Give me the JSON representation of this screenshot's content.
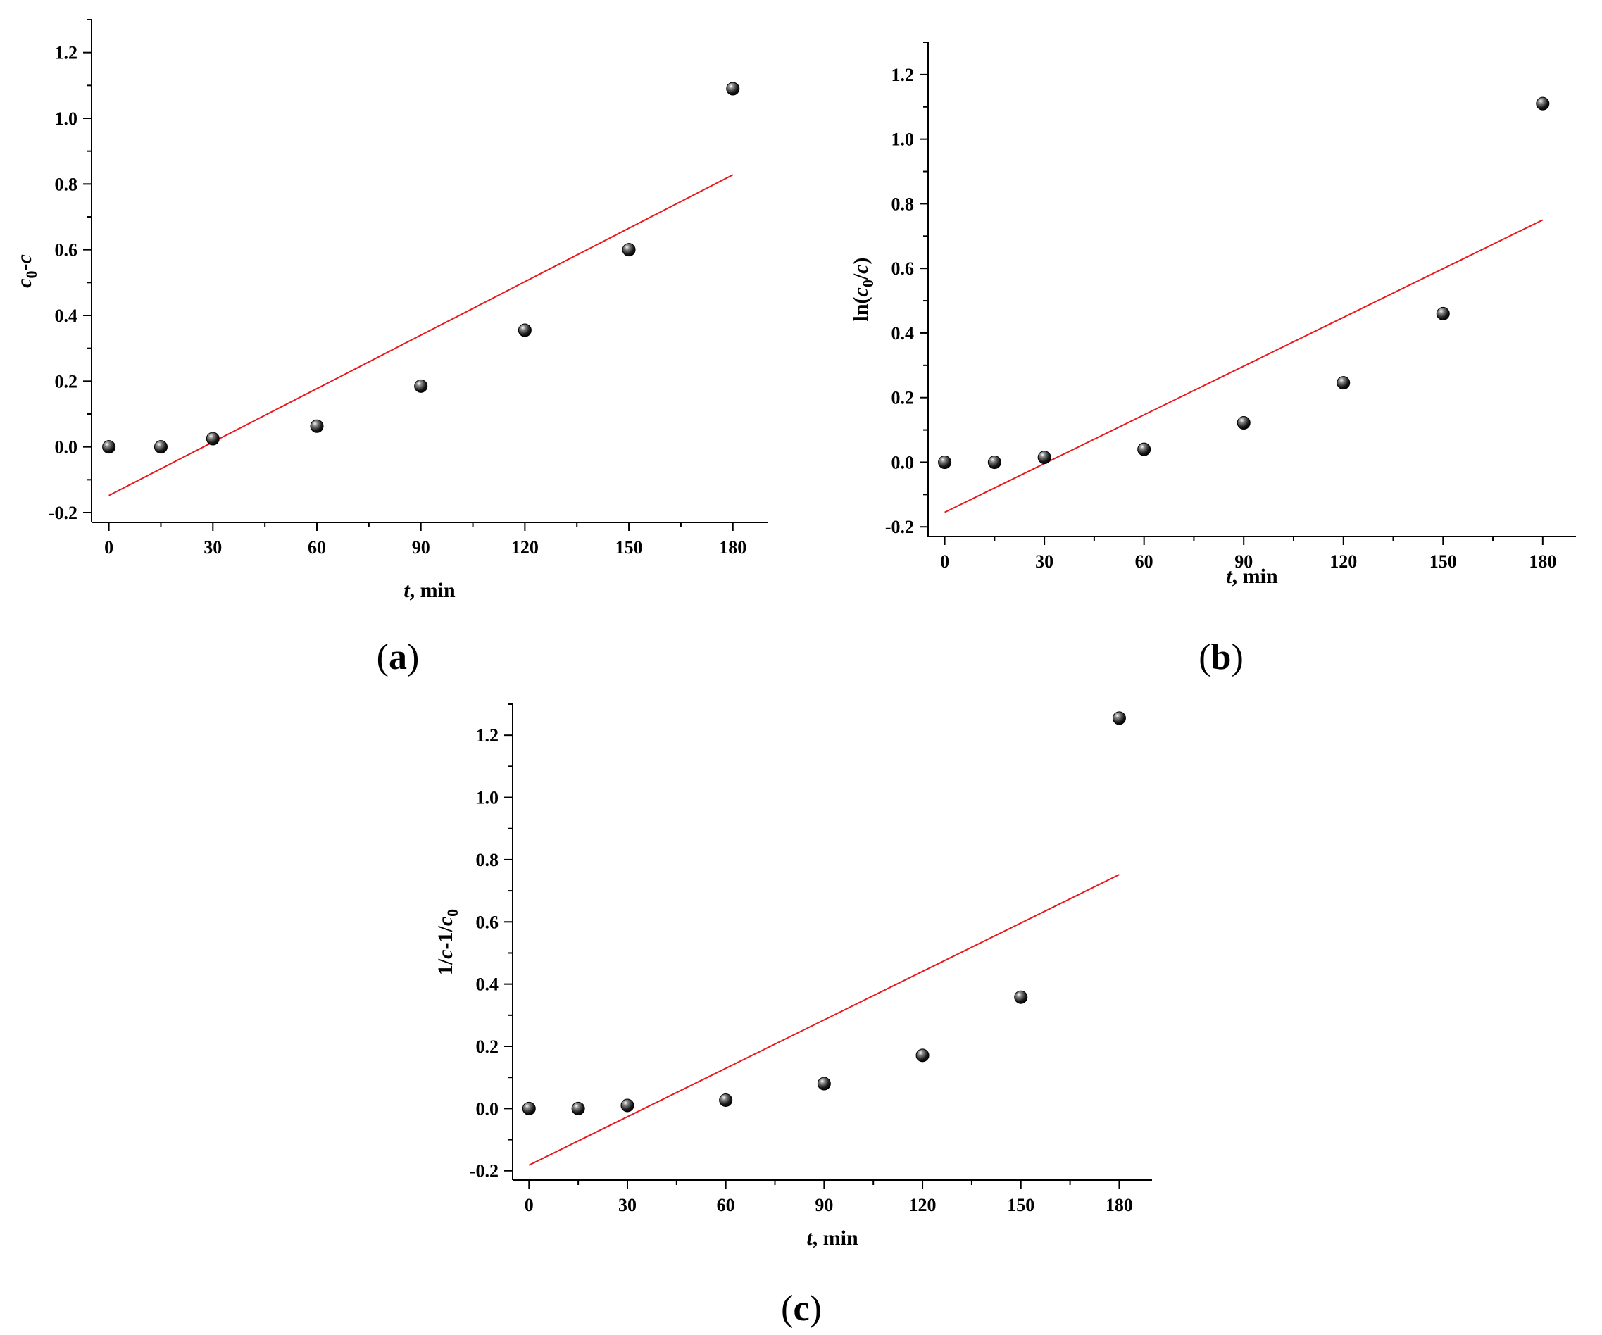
{
  "figure": {
    "colors": {
      "points": "#000000",
      "fit_line": "#e8191c",
      "axes": "#000000",
      "background": "#ffffff"
    },
    "icons": {
      "marker": "shaded-sphere"
    }
  },
  "chart_data": [
    {
      "type": "scatter",
      "panel_label": [
        "(",
        "a",
        ")"
      ],
      "xlabel": {
        "var": "t",
        "unit": ", min"
      },
      "ylabel": {
        "parts": [
          {
            "t": "c",
            "i": true
          },
          {
            "t": "0",
            "sub": true,
            "i": false
          },
          {
            "t": "-",
            "i": false
          },
          {
            "t": "c",
            "i": true
          }
        ]
      },
      "x_ticks": [
        0,
        30,
        60,
        90,
        120,
        150,
        180
      ],
      "x_tick_labels": [
        "0",
        "30",
        "60",
        "90",
        "120",
        "150",
        "180"
      ],
      "y_ticks": [
        -0.2,
        0.0,
        0.2,
        0.4,
        0.6,
        0.8,
        1.0,
        1.2
      ],
      "y_tick_labels": [
        "-0.2",
        "0.0",
        "0.2",
        "0.4",
        "0.6",
        "0.8",
        "1.0",
        "1.2"
      ],
      "xlim": [
        -5,
        190
      ],
      "ylim": [
        -0.23,
        1.3
      ],
      "grid": false,
      "legend": "none",
      "points": {
        "x": [
          0,
          15,
          30,
          60,
          90,
          120,
          150,
          180
        ],
        "y": [
          0.0,
          0.0,
          0.025,
          0.063,
          0.185,
          0.355,
          0.6,
          1.09
        ]
      },
      "fit_line": {
        "x": [
          0,
          180
        ],
        "y": [
          -0.148,
          0.828
        ]
      }
    },
    {
      "type": "scatter",
      "panel_label": [
        "(",
        "b",
        ")"
      ],
      "xlabel": {
        "var": "t",
        "unit": ", min"
      },
      "ylabel": {
        "parts": [
          {
            "t": "ln(",
            "i": false
          },
          {
            "t": "c",
            "i": true
          },
          {
            "t": "0",
            "sub": true,
            "i": false
          },
          {
            "t": "/",
            "i": false
          },
          {
            "t": "c",
            "i": true
          },
          {
            "t": ")",
            "i": false
          }
        ]
      },
      "x_ticks": [
        0,
        30,
        60,
        90,
        120,
        150,
        180
      ],
      "x_tick_labels": [
        "0",
        "30",
        "60",
        "90",
        "120",
        "150",
        "180"
      ],
      "y_ticks": [
        -0.2,
        0.0,
        0.2,
        0.4,
        0.6,
        0.8,
        1.0,
        1.2
      ],
      "y_tick_labels": [
        "-0.2",
        "0.0",
        "0.2",
        "0.4",
        "0.6",
        "0.8",
        "1.0",
        "1.2"
      ],
      "xlim": [
        -5,
        190
      ],
      "ylim": [
        -0.23,
        1.3
      ],
      "grid": false,
      "legend": "none",
      "points": {
        "x": [
          0,
          15,
          30,
          60,
          90,
          120,
          150,
          180
        ],
        "y": [
          0.0,
          0.0,
          0.015,
          0.04,
          0.122,
          0.246,
          0.46,
          1.11
        ]
      },
      "fit_line": {
        "x": [
          0,
          180
        ],
        "y": [
          -0.155,
          0.75
        ]
      }
    },
    {
      "type": "scatter",
      "panel_label": [
        "(",
        "c",
        ")"
      ],
      "xlabel": {
        "var": "t",
        "unit": ", min"
      },
      "ylabel": {
        "parts": [
          {
            "t": "1/",
            "i": false
          },
          {
            "t": "c",
            "i": true
          },
          {
            "t": "-1/",
            "i": false
          },
          {
            "t": "c",
            "i": true
          },
          {
            "t": "0",
            "sub": true,
            "i": false
          }
        ]
      },
      "x_ticks": [
        0,
        30,
        60,
        90,
        120,
        150,
        180
      ],
      "x_tick_labels": [
        "0",
        "30",
        "60",
        "90",
        "120",
        "150",
        "180"
      ],
      "y_ticks": [
        -0.2,
        0.0,
        0.2,
        0.4,
        0.6,
        0.8,
        1.0,
        1.2
      ],
      "y_tick_labels": [
        "-0.2",
        "0.0",
        "0.2",
        "0.4",
        "0.6",
        "0.8",
        "1.0",
        "1.2"
      ],
      "xlim": [
        -5,
        190
      ],
      "ylim": [
        -0.23,
        1.3
      ],
      "grid": false,
      "legend": "none",
      "points": {
        "x": [
          0,
          15,
          30,
          60,
          90,
          120,
          150,
          180
        ],
        "y": [
          0.0,
          0.0,
          0.01,
          0.027,
          0.08,
          0.171,
          0.358,
          1.255
        ]
      },
      "fit_line": {
        "x": [
          0,
          180
        ],
        "y": [
          -0.182,
          0.752
        ]
      }
    }
  ]
}
